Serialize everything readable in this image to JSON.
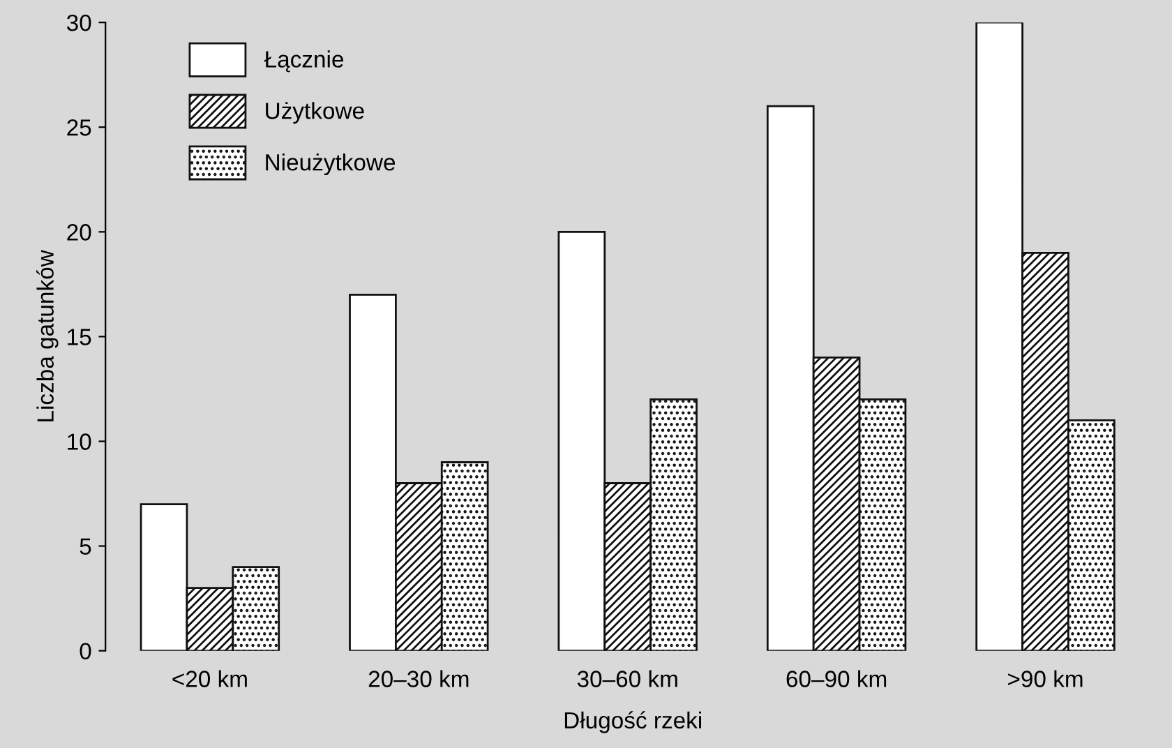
{
  "chart_data": {
    "type": "bar",
    "xlabel": "Długość rzeki",
    "ylabel": "Liczba gatunków",
    "categories": [
      "<20 km",
      "20–30 km",
      "30–60 km",
      "60–90 km",
      ">90 km"
    ],
    "series": [
      {
        "name": "Łącznie",
        "color": "#ffffff",
        "values": [
          7,
          17,
          20,
          26,
          30
        ]
      },
      {
        "name": "Użytkowe",
        "color": "#111111",
        "values": [
          3,
          8,
          8,
          14,
          19
        ]
      },
      {
        "name": "Nieużytkowe",
        "color": "#111111",
        "values": [
          4,
          9,
          12,
          12,
          11
        ]
      }
    ],
    "ylim": [
      0,
      30
    ],
    "yticks": [
      0,
      5,
      10,
      15,
      20,
      25,
      30
    ],
    "grid": false,
    "legend": "top left"
  }
}
